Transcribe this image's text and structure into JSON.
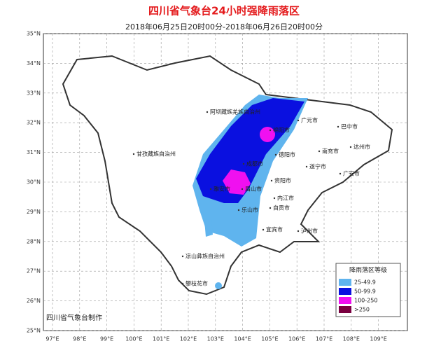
{
  "header": {
    "title": "四川省气象台24小时强降雨落区",
    "subtitle": "2018年06月25日20时00分-2018年06月26日20时00分"
  },
  "map": {
    "lat_labels": [
      "35°N",
      "34°N",
      "33°N",
      "32°N",
      "31°N",
      "30°N",
      "29°N",
      "28°N",
      "27°N",
      "26°N",
      "25°N"
    ],
    "lon_labels": [
      "97°E",
      "98°E",
      "99°E",
      "100°E",
      "101°E",
      "102°E",
      "103°E",
      "104°E",
      "105°E",
      "106°E",
      "107°E",
      "108°E",
      "109°E"
    ],
    "regions": [
      "阿坝藏族羌族自治州",
      "甘孜藏族自治州",
      "凉山彝族自治州",
      "攀枝花市",
      "广元市",
      "巴中市",
      "绵阳市",
      "达州市",
      "南充市",
      "德阳市",
      "遂宁市",
      "成都市",
      "广安市",
      "雅安市",
      "眉山市",
      "资阳市",
      "内江市",
      "乐山市",
      "自贡市",
      "宜宾市",
      "泸州市"
    ]
  },
  "legend": {
    "title": "降雨落区等级",
    "items": [
      {
        "label": "25-49.9",
        "color": "#5fb4ee"
      },
      {
        "label": "50-99.9",
        "color": "#0a10e0"
      },
      {
        "label": "100-250",
        "color": "#f010f0"
      },
      {
        "label": ">250",
        "color": "#7a0040"
      }
    ]
  },
  "footer": {
    "credit": "四川省气象台制作"
  }
}
